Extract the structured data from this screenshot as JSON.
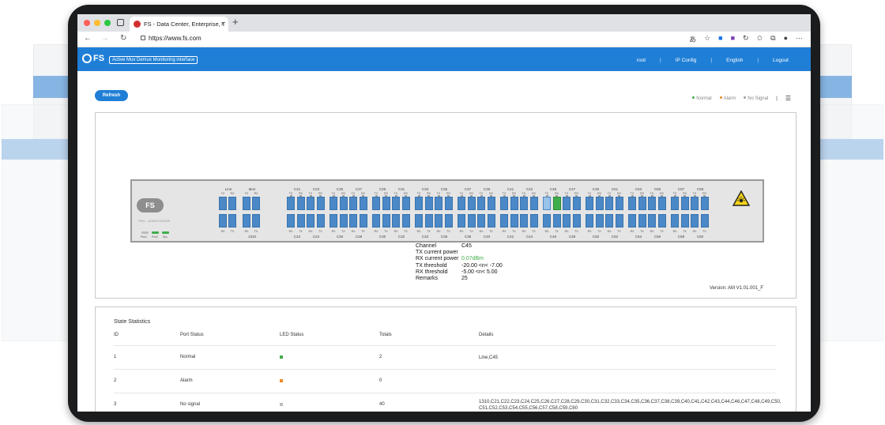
{
  "browser": {
    "tab_title": "FS - Data Center, Enterprise, T",
    "url": "https://www.fs.com",
    "dot_colors": [
      "#ff5f57",
      "#febc2e",
      "#28c840"
    ]
  },
  "app": {
    "logo": "FS",
    "title": "Active Mux Demux Monitoring interface",
    "menu": [
      "root",
      "IP Config",
      "English",
      "Logout"
    ],
    "refresh_label": "Refresh",
    "legend": [
      "Normal",
      "Alarm",
      "No Signal"
    ],
    "colors": {
      "brand": "#1f7fd6",
      "normal": "#3fae4a",
      "alarm": "#f08a24",
      "nosignal": "#9e9e9e"
    }
  },
  "device": {
    "badge": "FS",
    "model": "PMU - AOMS21BGMS",
    "power_labels": [
      "Pwr1",
      "Pwr2",
      "Sys"
    ],
    "groups": [
      {
        "top": [
          "Line"
        ],
        "bottom": [
          ""
        ],
        "ports": [
          "RX",
          "TX"
        ],
        "top_ports": [
          "TX",
          "RX"
        ]
      },
      {
        "top": [
          "Mon"
        ],
        "bottom": [
          "1310"
        ],
        "ports": [
          "RX",
          "TX"
        ],
        "top_ports": [
          "TX",
          "RX"
        ]
      },
      {
        "top": [
          "C21",
          "C23"
        ],
        "bottom": [
          "C22",
          "C24"
        ]
      },
      {
        "top": [
          "C25",
          "C27"
        ],
        "bottom": [
          "C26",
          "C28"
        ]
      },
      {
        "top": [
          "C29",
          "C31"
        ],
        "bottom": [
          "C30",
          "C32"
        ]
      },
      {
        "top": [
          "C33",
          "C35"
        ],
        "bottom": [
          "C34",
          "C36"
        ]
      },
      {
        "top": [
          "C37",
          "C39"
        ],
        "bottom": [
          "C38",
          "C40"
        ]
      },
      {
        "top": [
          "C41",
          "C43"
        ],
        "bottom": [
          "C42",
          "C44"
        ]
      },
      {
        "top": [
          "C45",
          "C47"
        ],
        "bottom": [
          "C46",
          "C48"
        ]
      },
      {
        "top": [
          "C49",
          "C51"
        ],
        "bottom": [
          "C50",
          "C52"
        ]
      },
      {
        "top": [
          "C53",
          "C55"
        ],
        "bottom": [
          "C54",
          "C56"
        ]
      },
      {
        "top": [
          "C57",
          "C59"
        ],
        "bottom": [
          "C58",
          "C60"
        ]
      }
    ],
    "selected_channel": "C45"
  },
  "channel_info": {
    "rows": [
      {
        "k": "Channel",
        "v": "C45"
      },
      {
        "k": "TX current power",
        "v": ""
      },
      {
        "k": "RX current power",
        "v": "0.07dBm"
      },
      {
        "k": "TX threshold",
        "v": "-20.00 <n< -7.00"
      },
      {
        "k": "RX threshold",
        "v": "-5.00 <n< 5.00"
      },
      {
        "k": "Remarks",
        "v": "25"
      }
    ]
  },
  "version": "Version: AM V1.01.001_F",
  "stats": {
    "title": "State Statistics",
    "headers": [
      "ID",
      "Port Status",
      "LED Status",
      "Totals",
      "Details"
    ],
    "rows": [
      {
        "id": "1",
        "status": "Normal",
        "led": "#3fae4a",
        "total": "2",
        "details": "Line,C45"
      },
      {
        "id": "2",
        "status": "Alarm",
        "led": "#f08a24",
        "total": "0",
        "details": ""
      },
      {
        "id": "3",
        "status": "No signal",
        "led": "#bdbdbd",
        "total": "40",
        "details": "1310,C21,C22,C23,C24,C25,C26,C27,C28,C29,C30,C31,C32,C33,C34,C35,C36,C37,C38,C39,C40,C41,C42,C43,C44,C46,C47,C48,C49,C50,",
        "details2": "C51,C52,C53,C54,C55,C56,C57,C58,C59,C60"
      }
    ]
  }
}
